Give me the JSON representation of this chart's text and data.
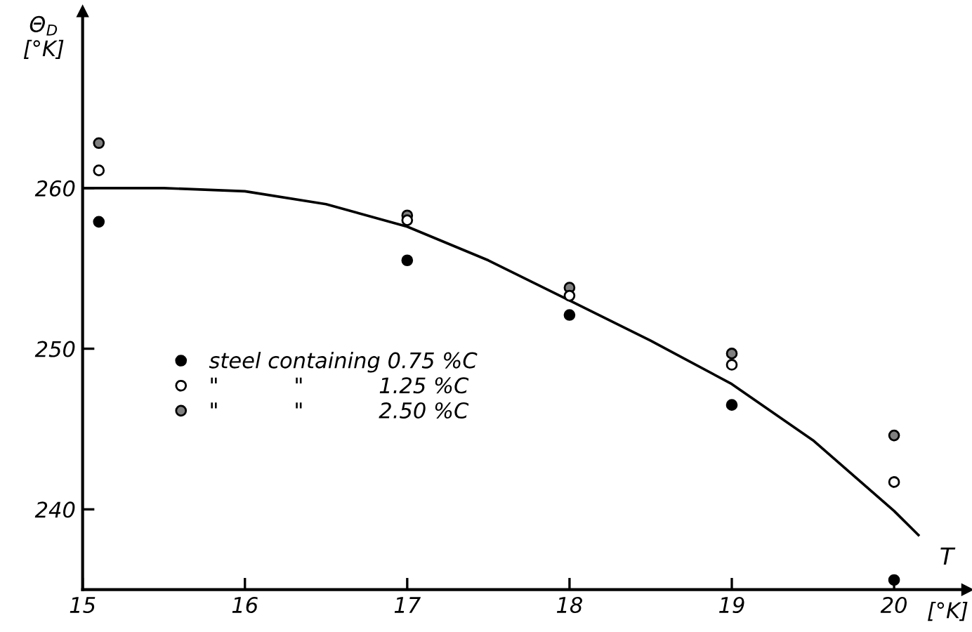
{
  "chart_data": {
    "type": "scatter",
    "xlabel": "T",
    "ylabel": "Θ$_{D}$\n[°K]",
    "annotations": [
      "[°K]"
    ],
    "xlim": [
      15,
      20.45
    ],
    "ylim": [
      235,
      271
    ],
    "xticks": [
      15,
      16,
      17,
      18,
      19,
      20
    ],
    "yticks": [
      240,
      250,
      260
    ],
    "grid": false,
    "legend": "center left",
    "series": [
      {
        "name": "steel containing 0.75 %C",
        "color": "#000000",
        "marker": "circle",
        "x": [
          15.1,
          17,
          18,
          19,
          20
        ],
        "values": [
          257.9,
          255.5,
          252.1,
          246.5,
          235.6
        ]
      },
      {
        "name": "\"           \"           1.25 %C",
        "color": "#ffffff",
        "marker": "circle",
        "x": [
          15.1,
          17,
          18,
          19,
          20
        ],
        "values": [
          261.1,
          258.0,
          253.3,
          249.0,
          241.7
        ]
      },
      {
        "name": "\"           \"           2.50 %C",
        "color": "#808080",
        "marker": "circle",
        "x": [
          15.1,
          17,
          18,
          19,
          20
        ],
        "values": [
          262.8,
          258.3,
          253.8,
          249.7,
          244.6
        ]
      },
      {
        "type": "line",
        "color": "#000000",
        "marker": "none",
        "x": [
          15,
          15.5,
          16,
          16.5,
          17,
          17.5,
          18,
          18.5,
          19,
          19.5,
          20,
          20.15
        ],
        "values": [
          260,
          260,
          259.8,
          259,
          257.6,
          255.5,
          253.0,
          250.5,
          247.8,
          244.3,
          239.9,
          238.4
        ]
      }
    ]
  }
}
